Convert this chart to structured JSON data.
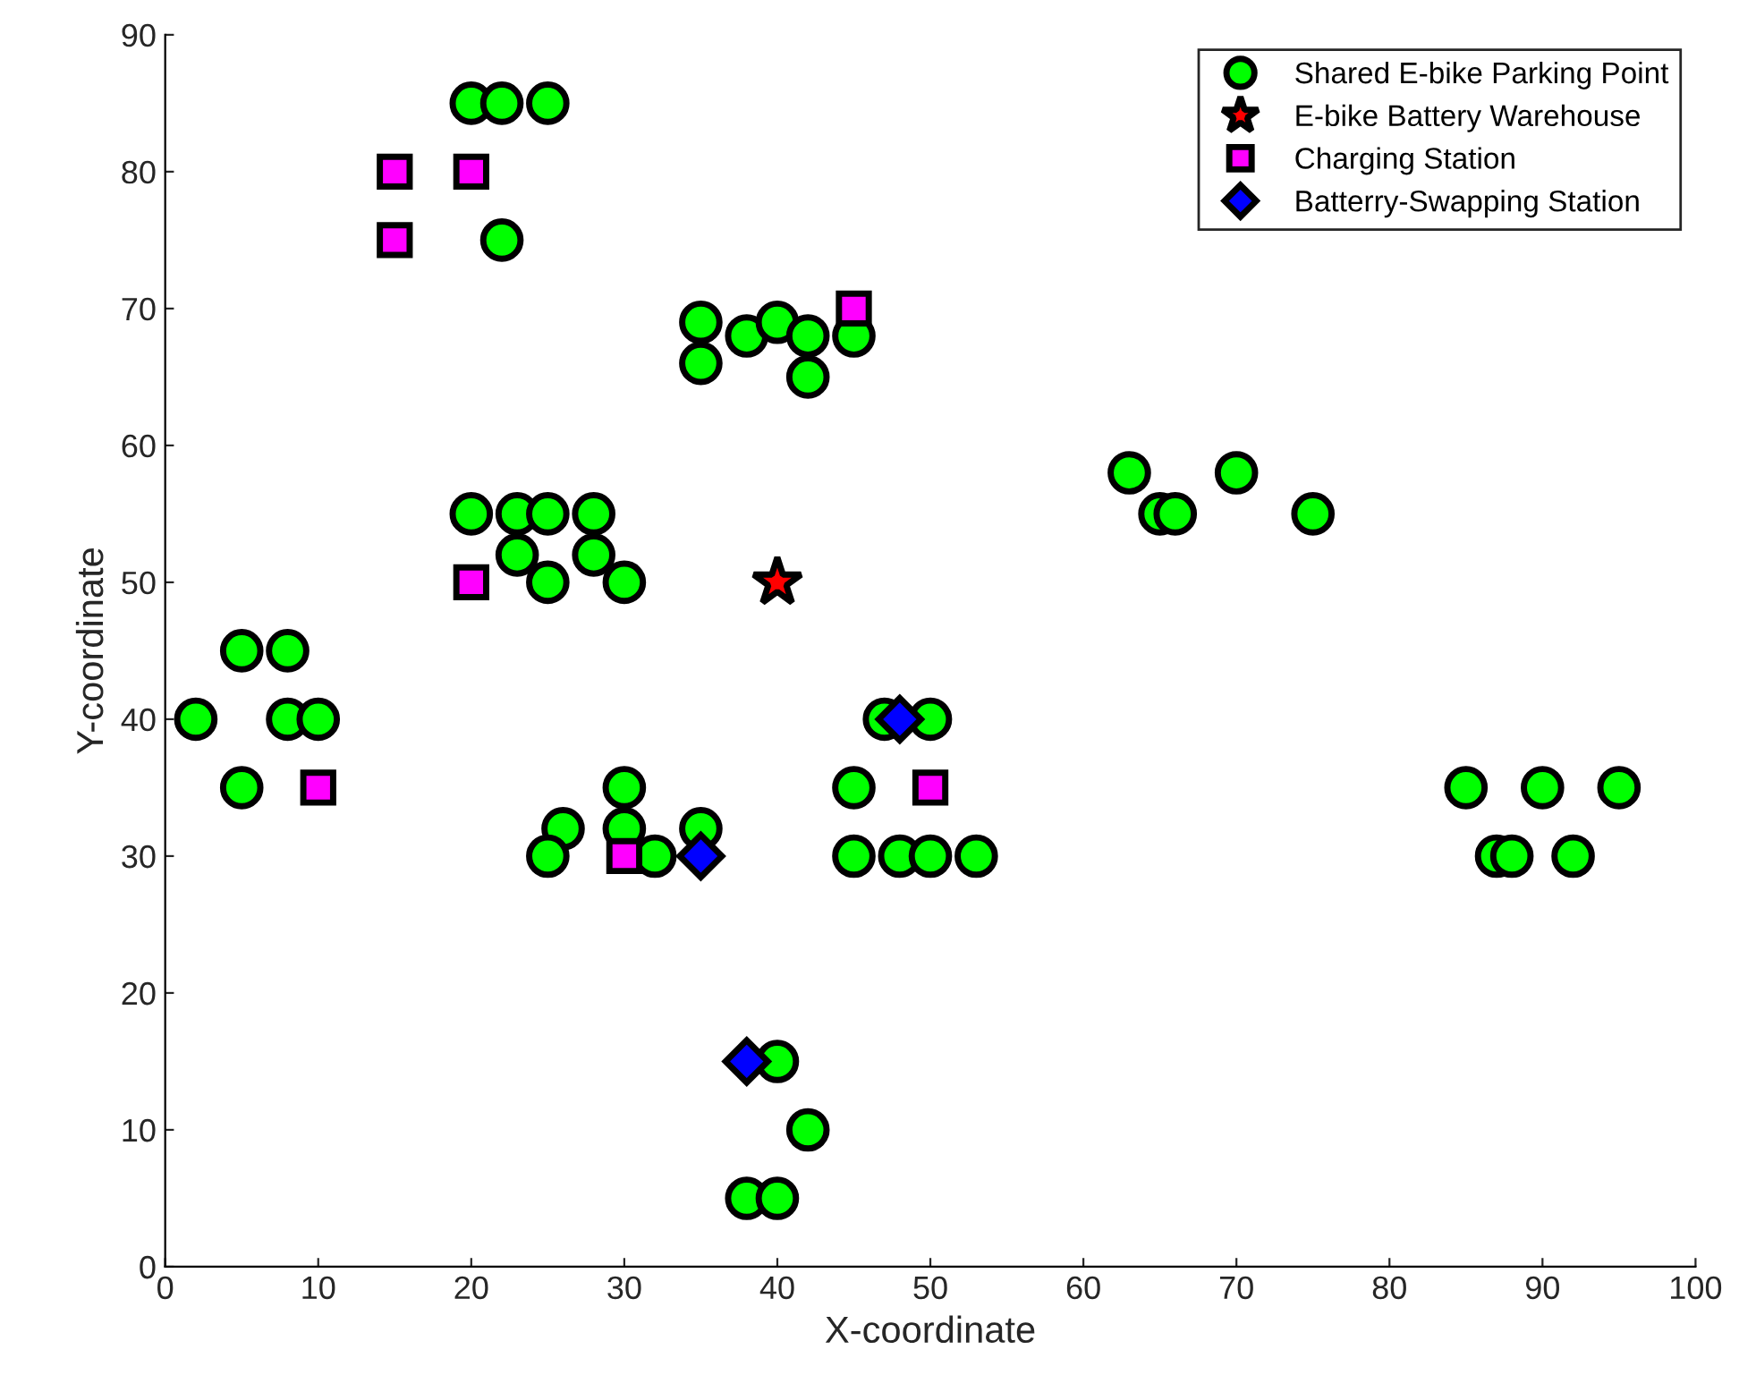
{
  "chart_data": {
    "type": "scatter",
    "xlabel": "X-coordinate",
    "ylabel": "Y-coordinate",
    "xlim": [
      0,
      100
    ],
    "ylim": [
      0,
      90
    ],
    "xticks": [
      0,
      10,
      20,
      30,
      40,
      50,
      60,
      70,
      80,
      90,
      100
    ],
    "yticks": [
      0,
      10,
      20,
      30,
      40,
      50,
      60,
      70,
      80,
      90
    ],
    "grid": false,
    "legend": "top right",
    "series": [
      {
        "name": "Shared E-bike Parking Point",
        "color": "#00ff00",
        "marker": "circle",
        "x": [
          20,
          22,
          25,
          22,
          35,
          35,
          38,
          40,
          42,
          42,
          45,
          20,
          23,
          25,
          28,
          23,
          28,
          25,
          30,
          5,
          8,
          2,
          8,
          10,
          5,
          30,
          26,
          25,
          30,
          32,
          35,
          47,
          50,
          45,
          45,
          48,
          50,
          53,
          40,
          42,
          38,
          40,
          63,
          70,
          65,
          66,
          75,
          85,
          90,
          95,
          87,
          88,
          92
        ],
        "values": [
          85,
          85,
          85,
          75,
          69,
          66,
          68,
          69,
          68,
          65,
          68,
          55,
          55,
          55,
          55,
          52,
          52,
          50,
          50,
          45,
          45,
          40,
          40,
          40,
          35,
          35,
          32,
          30,
          32,
          30,
          32,
          40,
          40,
          35,
          30,
          30,
          30,
          30,
          15,
          10,
          5,
          5,
          58,
          58,
          55,
          55,
          55,
          35,
          35,
          35,
          30,
          30,
          30
        ]
      },
      {
        "name": "E-bike Battery Warehouse",
        "color": "#ff0000",
        "marker": "star",
        "x": [
          40
        ],
        "values": [
          50
        ]
      },
      {
        "name": "Charging Station",
        "color": "#ff00ff",
        "marker": "square",
        "x": [
          15,
          20,
          15,
          45,
          20,
          10,
          30,
          50
        ],
        "values": [
          80,
          80,
          75,
          70,
          50,
          35,
          30,
          35
        ]
      },
      {
        "name": "Batterry-Swapping Station",
        "color": "#0000ff",
        "marker": "diamond",
        "x": [
          48,
          35,
          38
        ],
        "values": [
          40,
          30,
          15
        ]
      }
    ]
  }
}
